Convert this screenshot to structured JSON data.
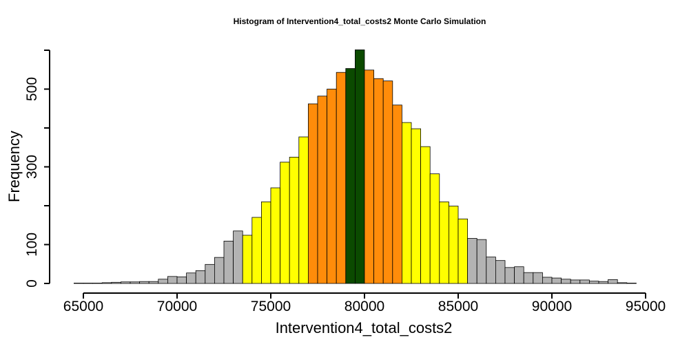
{
  "chart_data": {
    "type": "bar",
    "title": "Histogram of  Intervention4_total_costs2  Monte Carlo Simulation",
    "xlabel": "Intervention4_total_costs2",
    "ylabel": "Frequency",
    "xlim": [
      64500,
      95000
    ],
    "ylim": [
      0,
      600
    ],
    "x_ticks": [
      65000,
      70000,
      75000,
      80000,
      85000,
      90000,
      95000
    ],
    "y_ticks": [
      0,
      100,
      300,
      500
    ],
    "grid": false,
    "bin_width": 500,
    "bin_start": 64500,
    "values": [
      1,
      1,
      1,
      2,
      3,
      4,
      4,
      5,
      5,
      11,
      18,
      17,
      27,
      33,
      49,
      67,
      109,
      135,
      124,
      170,
      210,
      246,
      312,
      325,
      377,
      462,
      482,
      500,
      543,
      553,
      601,
      549,
      527,
      521,
      459,
      414,
      398,
      352,
      282,
      210,
      199,
      166,
      116,
      113,
      68,
      59,
      41,
      43,
      28,
      28,
      16,
      14,
      11,
      9,
      9,
      6,
      5,
      10,
      2,
      1
    ],
    "colors": {
      "tail": "#b3b3b3",
      "mid": "#ffff00",
      "inner": "#ff8c0a",
      "center": "#0b4a00"
    },
    "color_ranges": [
      {
        "from": 64500,
        "to": 73500,
        "color_key": "tail"
      },
      {
        "from": 73500,
        "to": 77000,
        "color_key": "mid"
      },
      {
        "from": 77000,
        "to": 79000,
        "color_key": "inner"
      },
      {
        "from": 79000,
        "to": 80000,
        "color_key": "center"
      },
      {
        "from": 80000,
        "to": 82000,
        "color_key": "inner"
      },
      {
        "from": 82000,
        "to": 85500,
        "color_key": "mid"
      },
      {
        "from": 85500,
        "to": 95000,
        "color_key": "tail"
      }
    ]
  }
}
